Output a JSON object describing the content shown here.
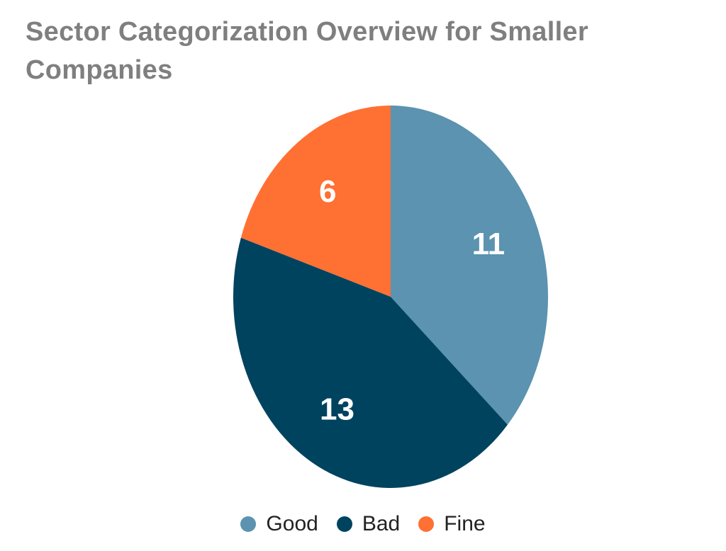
{
  "chart_data": {
    "type": "pie",
    "title": "Sector Categorization Overview for Smaller Companies",
    "categories": [
      "Good",
      "Bad",
      "Fine"
    ],
    "values": [
      11,
      13,
      6
    ],
    "colors": [
      "#5b93b0",
      "#00435f",
      "#ff7033"
    ],
    "legend_position": "bottom"
  }
}
